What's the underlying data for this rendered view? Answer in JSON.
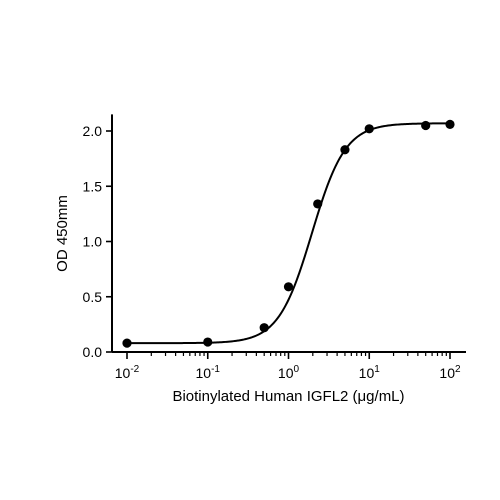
{
  "chart_data": {
    "type": "scatter",
    "title": "",
    "xlabel": "Biotinylated Human IGFL2 (μg/mL)",
    "ylabel": "OD 450mm",
    "x_scale": "log",
    "xlim": [
      0.01,
      100
    ],
    "ylim": [
      0,
      2.15
    ],
    "grid": false,
    "legend": "none",
    "x_tick_exponents": [
      "-2",
      "-1",
      "0",
      "1",
      "2"
    ],
    "y_ticks": [
      "0.0",
      "0.5",
      "1.0",
      "1.5",
      "2.0"
    ],
    "series": [
      {
        "x": [
          0.01,
          0.1,
          0.5,
          1.0,
          2.3,
          5.0,
          10.0,
          50.0,
          100.0
        ],
        "y": [
          0.08,
          0.09,
          0.22,
          0.59,
          1.34,
          1.83,
          2.02,
          2.05,
          2.06
        ],
        "fit": "four-parameter-logistic",
        "fit_params": {
          "bottom": 0.08,
          "top": 2.07,
          "ec50": 1.95,
          "hill": 2.1
        }
      }
    ]
  }
}
